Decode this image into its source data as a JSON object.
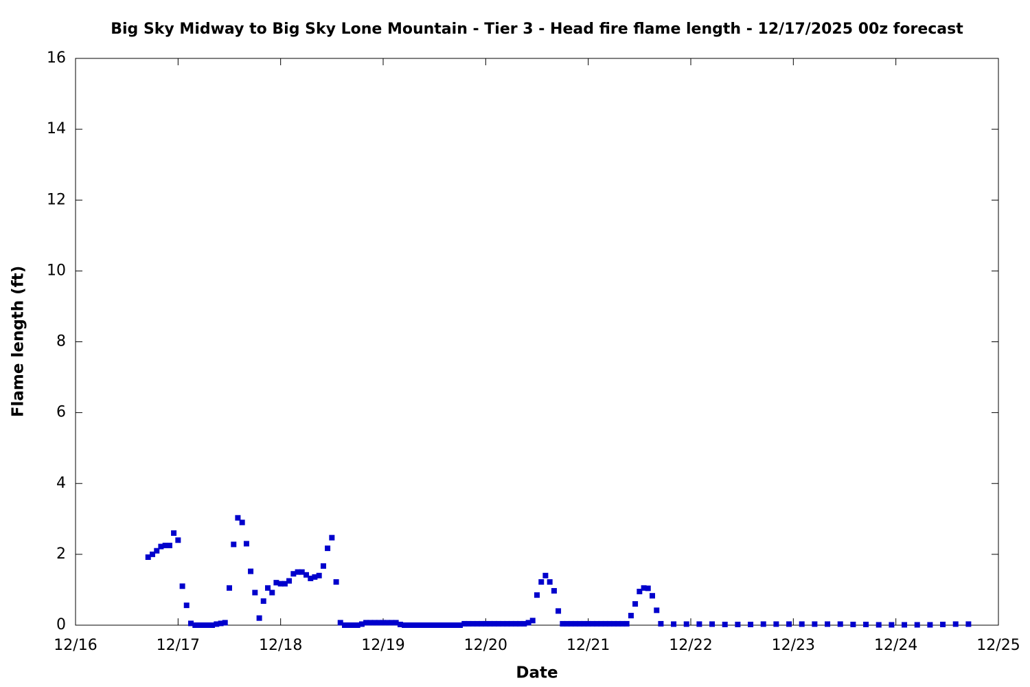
{
  "chart_data": {
    "type": "scatter",
    "title": "Big Sky Midway to Big Sky Lone Mountain - Tier 3 - Head fire flame length - 12/17/2025 00z forecast",
    "x_label": "Date",
    "y_label": "Flame length (ft)",
    "xlim": [
      16,
      25
    ],
    "xticks": [
      {
        "value": 16,
        "label": "12/16"
      },
      {
        "value": 17,
        "label": "12/17"
      },
      {
        "value": 18,
        "label": "12/18"
      },
      {
        "value": 19,
        "label": "12/19"
      },
      {
        "value": 20,
        "label": "12/20"
      },
      {
        "value": 21,
        "label": "12/21"
      },
      {
        "value": 22,
        "label": "12/22"
      },
      {
        "value": 23,
        "label": "12/23"
      },
      {
        "value": 24,
        "label": "12/24"
      },
      {
        "value": 25,
        "label": "12/25"
      }
    ],
    "ylim": [
      0,
      16
    ],
    "yticks": [
      0,
      2,
      4,
      6,
      8,
      10,
      12,
      14,
      16
    ],
    "grid": false,
    "series": [
      {
        "color": "#0000cc",
        "x": [
          16.708,
          16.75,
          16.792,
          16.833,
          16.875,
          16.917,
          16.958,
          17,
          17.042,
          17.083,
          17.125,
          17.167,
          17.208,
          17.25,
          17.292,
          17.333,
          17.375,
          17.417,
          17.458,
          17.5,
          17.542,
          17.583,
          17.625,
          17.667,
          17.708,
          17.75,
          17.792,
          17.833,
          17.875,
          17.917,
          17.958,
          18,
          18.042,
          18.083,
          18.125,
          18.167,
          18.208,
          18.25,
          18.292,
          18.333,
          18.375,
          18.417,
          18.458,
          18.5,
          18.542,
          18.583,
          18.625,
          18.667,
          18.708,
          18.75,
          18.792,
          18.833,
          18.875,
          18.917,
          18.958,
          19,
          19.042,
          19.083,
          19.125,
          19.167,
          19.208,
          19.25,
          19.292,
          19.333,
          19.375,
          19.417,
          19.458,
          19.5,
          19.542,
          19.583,
          19.625,
          19.667,
          19.708,
          19.75,
          19.792,
          19.833,
          19.875,
          19.917,
          19.958,
          20,
          20.042,
          20.083,
          20.125,
          20.167,
          20.208,
          20.25,
          20.292,
          20.333,
          20.375,
          20.417,
          20.458,
          20.5,
          20.542,
          20.583,
          20.625,
          20.667,
          20.708,
          20.75,
          20.792,
          20.833,
          20.875,
          20.917,
          20.958,
          21,
          21.042,
          21.083,
          21.125,
          21.167,
          21.208,
          21.25,
          21.292,
          21.333,
          21.375,
          21.417,
          21.458,
          21.5,
          21.542,
          21.583,
          21.625,
          21.667,
          21.708,
          21.833,
          21.958,
          22.083,
          22.208,
          22.333,
          22.458,
          22.583,
          22.708,
          22.833,
          22.958,
          23.083,
          23.208,
          23.333,
          23.458,
          23.583,
          23.708,
          23.833,
          23.958,
          24.083,
          24.208,
          24.333,
          24.458,
          24.583,
          24.708
        ],
        "values": [
          1.92,
          2.0,
          2.1,
          2.22,
          2.25,
          2.25,
          2.6,
          2.4,
          1.1,
          0.56,
          0.05,
          0,
          0,
          0,
          0,
          0,
          0.03,
          0.05,
          0.07,
          1.05,
          2.28,
          3.03,
          2.9,
          2.3,
          1.52,
          0.92,
          0.2,
          0.68,
          1.05,
          0.92,
          1.2,
          1.17,
          1.17,
          1.25,
          1.45,
          1.5,
          1.5,
          1.42,
          1.32,
          1.36,
          1.4,
          1.67,
          2.17,
          2.47,
          1.22,
          0.07,
          0,
          0,
          0,
          0,
          0.03,
          0.07,
          0.07,
          0.07,
          0.07,
          0.07,
          0.07,
          0.07,
          0.07,
          0.02,
          0,
          0,
          0,
          0,
          0,
          0,
          0,
          0,
          0,
          0,
          0,
          0,
          0,
          0,
          0.04,
          0.04,
          0.04,
          0.04,
          0.04,
          0.04,
          0.04,
          0.04,
          0.04,
          0.04,
          0.04,
          0.04,
          0.04,
          0.04,
          0.04,
          0.07,
          0.13,
          0.85,
          1.22,
          1.4,
          1.22,
          0.97,
          0.4,
          0.04,
          0.04,
          0.04,
          0.04,
          0.04,
          0.04,
          0.04,
          0.04,
          0.04,
          0.04,
          0.04,
          0.04,
          0.04,
          0.04,
          0.04,
          0.04,
          0.27,
          0.6,
          0.95,
          1.05,
          1.04,
          0.83,
          0.42,
          0.04,
          0.03,
          0.03,
          0.03,
          0.03,
          0.02,
          0.02,
          0.02,
          0.03,
          0.03,
          0.03,
          0.03,
          0.03,
          0.03,
          0.03,
          0.02,
          0.02,
          0.01,
          0.01,
          0.01,
          0.01,
          0.01,
          0.02,
          0.03,
          0.03
        ]
      }
    ]
  }
}
